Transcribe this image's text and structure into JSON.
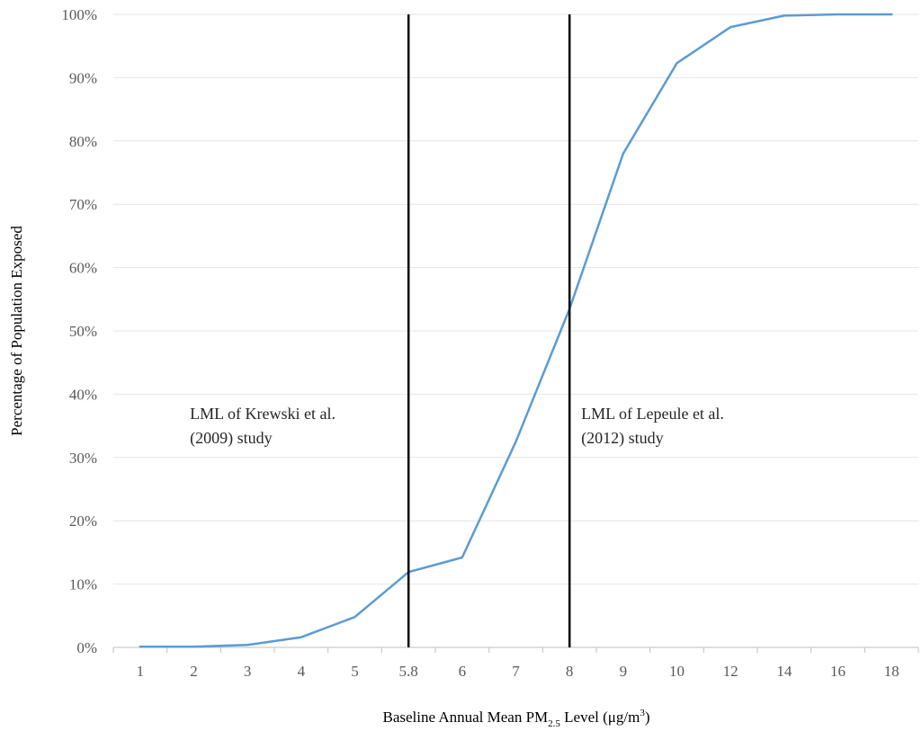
{
  "chart_data": {
    "type": "line",
    "title": "",
    "xlabel": {
      "prefix": "Baseline Annual Mean PM",
      "subscript": "2.5",
      "middle": " Level (μg/m",
      "superscript": "3",
      "suffix": ")"
    },
    "ylabel": "Percentage of Population Exposed",
    "categories": [
      "1",
      "2",
      "3",
      "4",
      "5",
      "5.8",
      "6",
      "7",
      "8",
      "9",
      "10",
      "12",
      "14",
      "16",
      "18"
    ],
    "series": [
      {
        "values": [
          0.1,
          0.1,
          0.4,
          1.6,
          4.8,
          11.9,
          14.2,
          32.5,
          53.5,
          78.0,
          92.3,
          98.0,
          99.8,
          100.0,
          100.0
        ]
      }
    ],
    "ylim": [
      0,
      100
    ],
    "yticks": [
      0,
      10,
      20,
      30,
      40,
      50,
      60,
      70,
      80,
      90,
      100
    ],
    "ytick_suffix": "%",
    "grid": true,
    "reference_lines": [
      {
        "category": "5.8",
        "label_lines": [
          "LML  of Krewski et al.",
          "(2009) study"
        ]
      },
      {
        "category": "8",
        "label_lines": [
          "LML  of Lepeule et al.",
          "(2012) study"
        ]
      }
    ],
    "colors": {
      "line": "#5b9bd5",
      "grid": "#e4e4e4",
      "axis": "#bfbfbf",
      "reference": "#000000"
    }
  }
}
